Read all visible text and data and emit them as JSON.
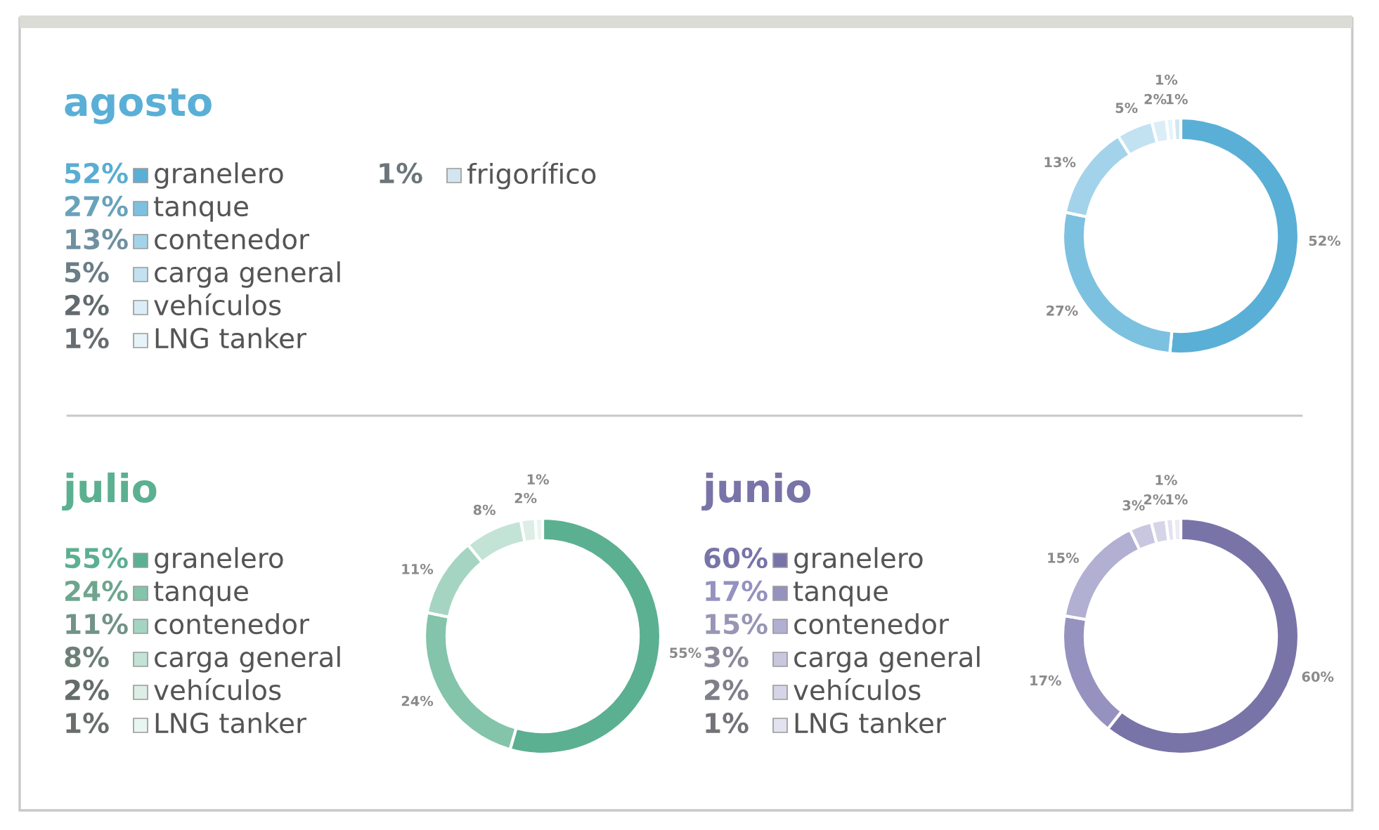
{
  "chart_data": [
    {
      "type": "donut",
      "title": "agosto",
      "legend": "left",
      "categories": [
        "granelero",
        "tanque",
        "contenedor",
        "carga general",
        "vehículos",
        "LNG tanker",
        "frigorífico"
      ],
      "values": [
        52,
        27,
        13,
        5,
        2,
        1,
        1
      ],
      "value_labels": [
        "52%",
        "27%",
        "13%",
        "5%",
        "2%",
        "1%",
        "1%"
      ],
      "colors": [
        "#5aafd6",
        "#7dc1e0",
        "#a3d3ea",
        "#c2e2f1",
        "#dbeef7",
        "#e6f3f9",
        "#d3e6f0"
      ]
    },
    {
      "type": "donut",
      "title": "julio",
      "legend": "left",
      "categories": [
        "granelero",
        "tanque",
        "contenedor",
        "carga general",
        "vehículos",
        "LNG tanker"
      ],
      "values": [
        55,
        24,
        11,
        8,
        2,
        1
      ],
      "value_labels": [
        "55%",
        "24%",
        "11%",
        "8%",
        "2%",
        "1%"
      ],
      "colors": [
        "#5bb091",
        "#83c4aa",
        "#a5d5c2",
        "#c2e3d6",
        "#dceee6",
        "#e9f5f0"
      ]
    },
    {
      "type": "donut",
      "title": "junio",
      "legend": "left",
      "categories": [
        "granelero",
        "tanque",
        "contenedor",
        "carga general",
        "vehículos",
        "LNG tanker",
        null
      ],
      "values": [
        60,
        17,
        15,
        3,
        2,
        1,
        1
      ],
      "value_labels": [
        "60%",
        "17%",
        "15%",
        "3%",
        "2%",
        "1%",
        "1%"
      ],
      "colors": [
        "#7874a8",
        "#9592c0",
        "#b1afd2",
        "#c9c7e0",
        "#d6d5e8",
        "#e3e2ef",
        "#ecebf4"
      ]
    }
  ]
}
